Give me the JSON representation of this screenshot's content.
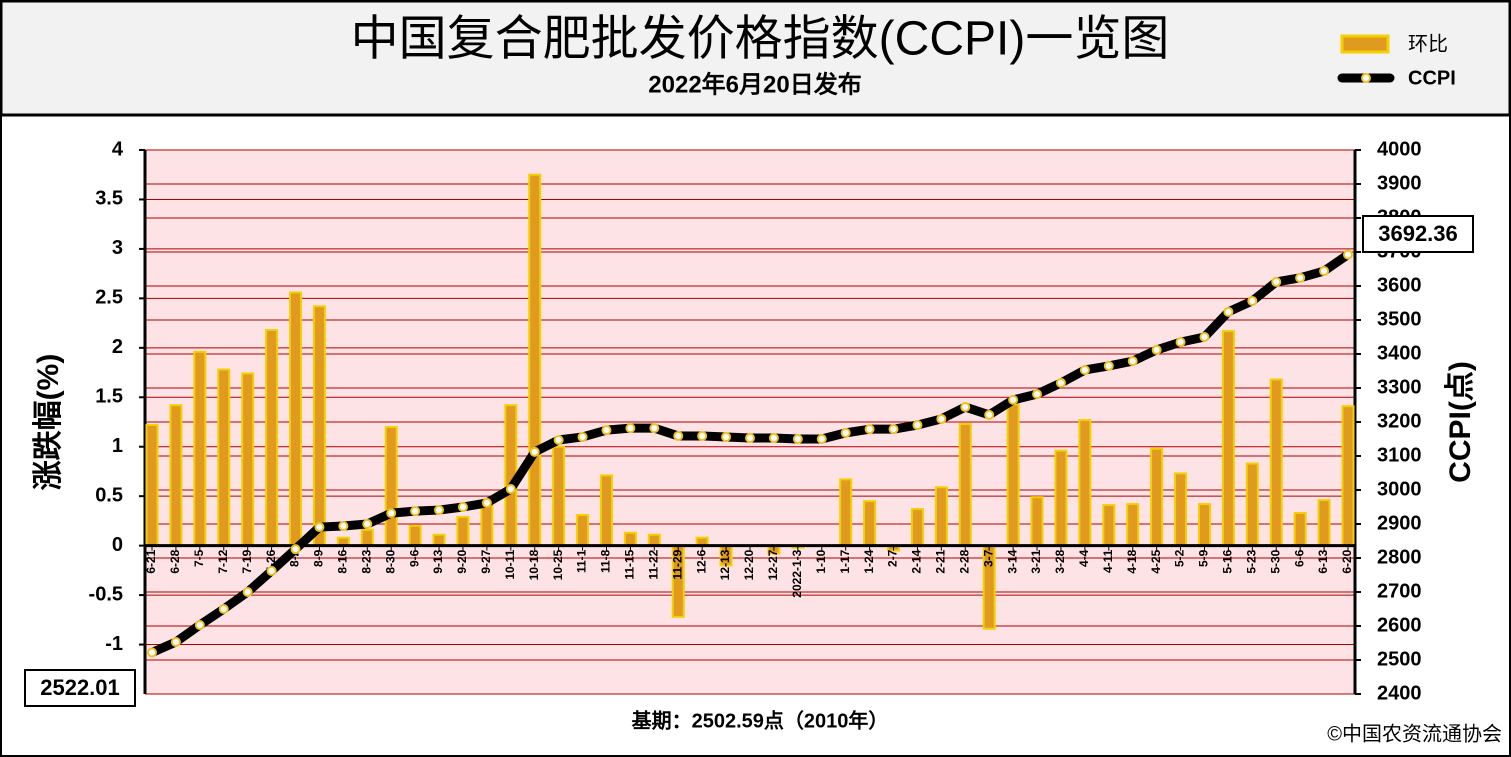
{
  "chart_data": {
    "type": "bar-line",
    "title": "中国复合肥批发价格指数(CCPI)一览图",
    "subtitle": "2022年6月20日发布",
    "y_label": "涨跌幅(%)",
    "y2_label": "CCPI(点)",
    "footnote": "基期：2502.59点（2010年）",
    "source": "©中国农资流通协会",
    "categories": [
      "6-21",
      "6-28",
      "7-5",
      "7-12",
      "7-19",
      "7-26",
      "8-2",
      "8-9",
      "8-16",
      "8-23",
      "8-30",
      "9-6",
      "9-13",
      "9-20",
      "9-27",
      "10-11",
      "10-18",
      "10-25",
      "11-1",
      "11-8",
      "11-15",
      "11-22",
      "11-29",
      "12-6",
      "12-13",
      "12-20",
      "12-27",
      "2022-1-3",
      "1-10",
      "1-17",
      "1-24",
      "2-7",
      "2-14",
      "2-21",
      "2-28",
      "3-7",
      "3-14",
      "3-21",
      "3-28",
      "4-4",
      "4-11",
      "4-18",
      "4-25",
      "5-2",
      "5-9",
      "5-16",
      "5-23",
      "5-30",
      "6-6",
      "6-13",
      "6-20"
    ],
    "series": [
      {
        "name": "环比",
        "color": "#e09a20",
        "values": [
          1.22,
          1.42,
          1.96,
          1.78,
          1.74,
          2.18,
          2.56,
          2.42,
          0.08,
          0.16,
          1.2,
          0.2,
          0.11,
          0.29,
          0.45,
          1.42,
          3.75,
          1.0,
          0.31,
          0.71,
          0.13,
          0.11,
          -0.72,
          0.08,
          -0.2,
          0.0,
          -0.08,
          -0.02,
          0.0,
          0.67,
          0.45,
          -0.05,
          0.37,
          0.59,
          1.23,
          -0.84,
          1.43,
          0.49,
          0.96,
          1.27,
          0.41,
          0.42,
          0.98,
          0.73,
          0.42,
          2.17,
          0.83,
          1.68,
          0.33,
          0.46,
          1.41
        ]
      },
      {
        "name": "CCPI",
        "color": "#000000",
        "axis": "y2",
        "values": [
          2522.01,
          2553,
          2603,
          2650,
          2700,
          2762,
          2826,
          2891,
          2894,
          2900,
          2932,
          2938,
          2941,
          2950,
          2962,
          3003,
          3112,
          3147,
          3156,
          3176,
          3182,
          3182,
          3159,
          3159,
          3156,
          3153,
          3153,
          3150,
          3150,
          3168,
          3179,
          3179,
          3191,
          3209,
          3244,
          3221,
          3265,
          3282,
          3315,
          3353,
          3365,
          3379,
          3412,
          3435,
          3450,
          3524,
          3556,
          3612,
          3624,
          3644,
          3692.36
        ]
      }
    ],
    "ylim": [
      -1.5,
      4
    ],
    "yticks": [
      -1,
      -0.5,
      0,
      0.5,
      1,
      1.5,
      2,
      2.5,
      3,
      3.5,
      4
    ],
    "y2lim": [
      2400,
      4000
    ],
    "y2ticks": [
      2400,
      2500,
      2600,
      2700,
      2800,
      2900,
      3000,
      3100,
      3200,
      3300,
      3400,
      3500,
      3600,
      3700,
      3800,
      3900,
      4000
    ],
    "grid": true
  }
}
